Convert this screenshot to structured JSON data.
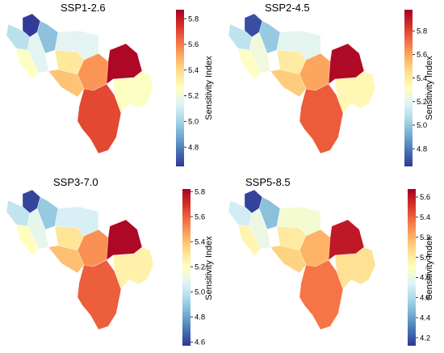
{
  "colorbar_title": "Sensitivity Index",
  "colormap_stops": [
    "#313695",
    "#4575b4",
    "#74add1",
    "#abd9e9",
    "#e0f3f8",
    "#ffffbf",
    "#fee090",
    "#fdae61",
    "#f46d43",
    "#d73027",
    "#a50026"
  ],
  "panels": [
    {
      "title": "SSP1-2.6",
      "vmin": 4.65,
      "vmax": 5.87,
      "ticks": [
        4.8,
        5.0,
        5.2,
        5.4,
        5.6,
        5.8
      ],
      "tick_labels": [
        "4.8",
        "5.0",
        "5.2",
        "5.4",
        "5.6",
        "5.8"
      ],
      "regions": [
        4.66,
        4.95,
        5.05,
        5.15,
        5.25,
        5.35,
        5.45,
        5.55,
        5.7,
        5.85,
        5.15,
        5.25
      ]
    },
    {
      "title": "SSP2-4.5",
      "vmin": 4.65,
      "vmax": 5.98,
      "ticks": [
        4.8,
        5.0,
        5.2,
        5.4,
        5.6,
        5.8
      ],
      "tick_labels": [
        "4.8",
        "5.0",
        "5.2",
        "5.4",
        "5.6",
        "5.8"
      ],
      "regions": [
        4.7,
        5.0,
        5.1,
        5.25,
        5.3,
        5.4,
        5.5,
        5.6,
        5.75,
        5.95,
        5.2,
        5.35
      ]
    },
    {
      "title": "SSP3-7.0",
      "vmin": 4.57,
      "vmax": 5.82,
      "ticks": [
        4.6,
        4.8,
        5.0,
        5.2,
        5.4,
        5.6,
        5.8
      ],
      "tick_labels": [
        "4.6",
        "4.8",
        "5.0",
        "5.2",
        "5.4",
        "5.6",
        "5.8"
      ],
      "regions": [
        4.6,
        4.9,
        5.0,
        5.1,
        5.2,
        5.3,
        5.4,
        5.5,
        5.6,
        5.8,
        5.05,
        5.25
      ]
    },
    {
      "title": "SSP5-8.5",
      "vmin": 4.12,
      "vmax": 5.68,
      "ticks": [
        4.2,
        4.4,
        4.6,
        4.8,
        5.0,
        5.2,
        5.4,
        5.6
      ],
      "tick_labels": [
        "4.2",
        "4.4",
        "4.6",
        "4.8",
        "5.0",
        "5.2",
        "5.4",
        "5.6"
      ],
      "regions": [
        4.15,
        4.5,
        4.7,
        4.8,
        4.95,
        5.0,
        5.1,
        5.2,
        5.35,
        5.6,
        4.85,
        5.05
      ]
    }
  ]
}
